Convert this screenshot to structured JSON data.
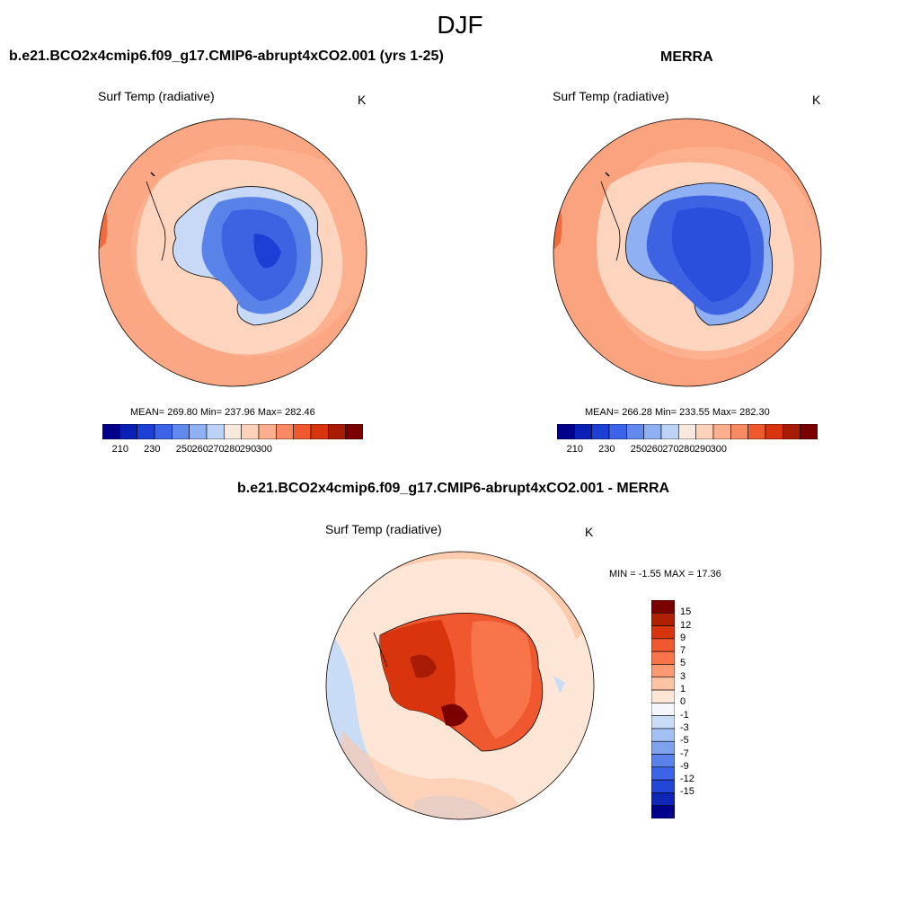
{
  "figure": {
    "title": "DJF"
  },
  "panels": [
    {
      "title": "b.e21.BCO2x4cmip6.f09_g17.CMIP6-abrupt4xCO2.001 (yrs 1-25)",
      "variable": "Surf Temp (radiative)",
      "units": "K",
      "stats": "MEAN= 269.80  Min= 237.96  Max= 282.46"
    },
    {
      "title": "MERRA",
      "variable": "Surf Temp (radiative)",
      "units": "K",
      "stats": "MEAN= 266.28  Min= 233.55  Max= 282.30"
    },
    {
      "title": "b.e21.BCO2x4cmip6.f09_g17.CMIP6-abrupt4xCO2.001 - MERRA",
      "variable": "Surf Temp (radiative)",
      "units": "K",
      "stats": "MIN =  -1.55 MAX =  17.36"
    }
  ],
  "colorbars": {
    "temperature": {
      "colors": [
        "#00008b",
        "#0a1fb5",
        "#1d3fd6",
        "#3c63e8",
        "#6189ee",
        "#8fb0f2",
        "#bdd3f6",
        "#f8e9df",
        "#fcd2bb",
        "#fcaf8c",
        "#f88a63",
        "#f0582f",
        "#d8350f",
        "#a81b05",
        "#7a0000"
      ],
      "labels": [
        "210",
        "230",
        "250",
        "260",
        "270",
        "280",
        "290",
        "300"
      ]
    },
    "difference": {
      "colors": [
        "#7a0000",
        "#b02104",
        "#d8350f",
        "#f0582f",
        "#f8744a",
        "#fb9a72",
        "#fdc4a3",
        "#fde6d6",
        "#f4f6fb",
        "#c8dcf6",
        "#a3c1f3",
        "#7ea2ee",
        "#5b82ea",
        "#3c63e8",
        "#2446d8",
        "#1026b6",
        "#00008b"
      ],
      "labels": [
        "15",
        "12",
        "9",
        "7",
        "5",
        "3",
        "1",
        "0",
        "-1",
        "-3",
        "-5",
        "-7",
        "-9",
        "-12",
        "-15"
      ]
    }
  }
}
